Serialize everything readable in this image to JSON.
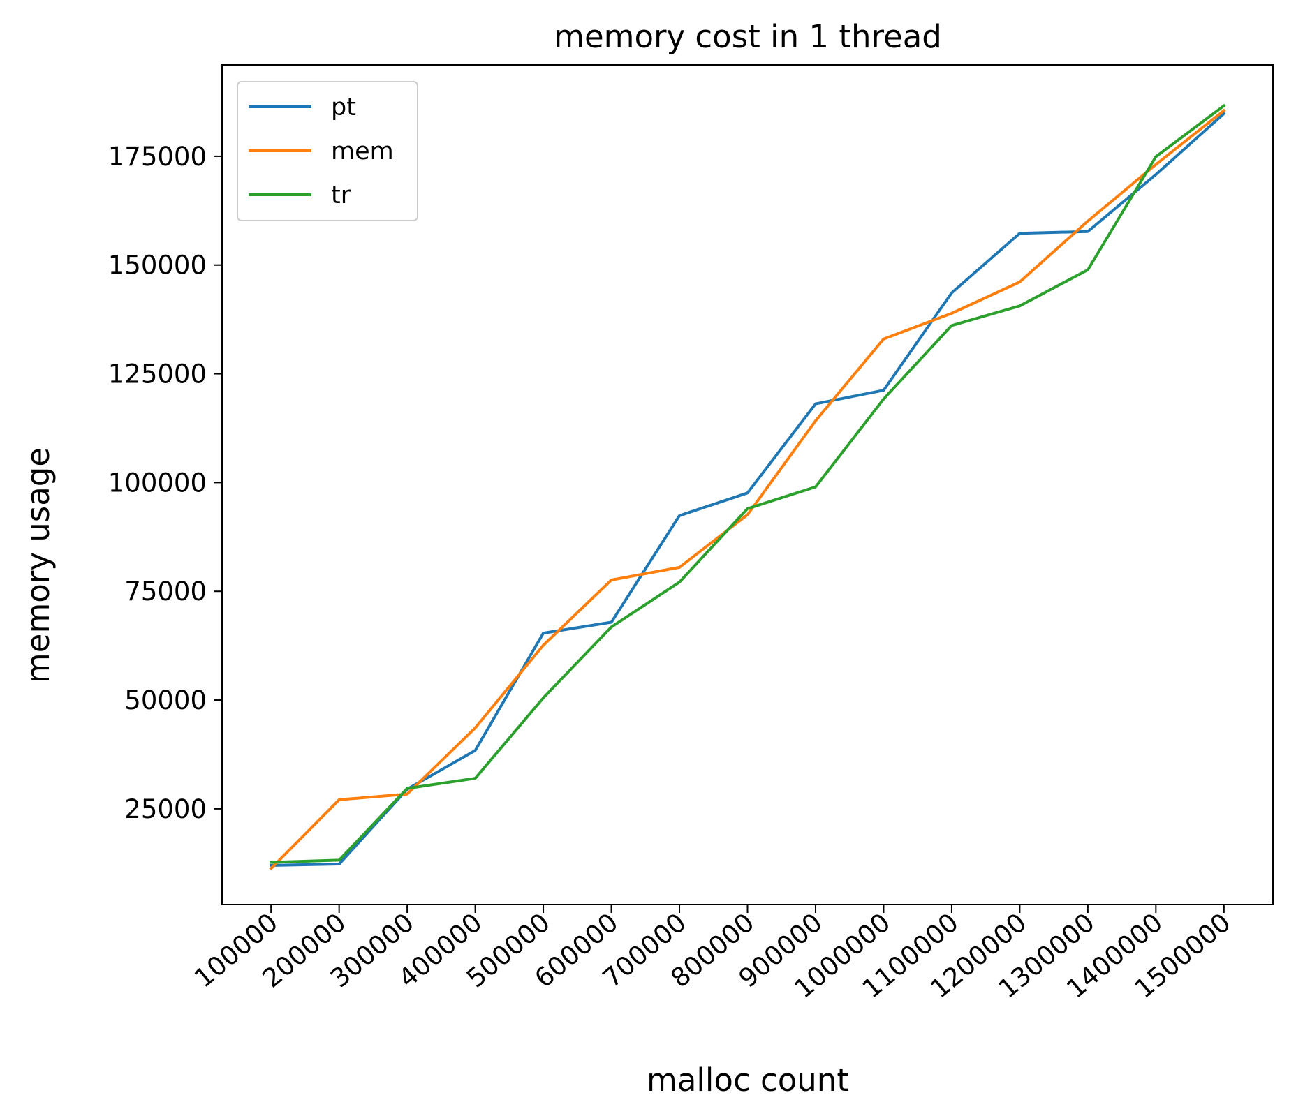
{
  "chart_data": {
    "type": "line",
    "title": "memory cost in 1 thread",
    "xlabel": "malloc count",
    "ylabel": "memory usage",
    "x": [
      100000,
      200000,
      300000,
      400000,
      500000,
      600000,
      700000,
      800000,
      900000,
      1000000,
      1100000,
      1200000,
      1300000,
      1400000,
      1500000
    ],
    "x_tick_labels": [
      "100000",
      "200000",
      "300000",
      "400000",
      "500000",
      "600000",
      "700000",
      "800000",
      "900000",
      "1000000",
      "1100000",
      "1200000",
      "1300000",
      "1400000",
      "1500000"
    ],
    "y_ticks": [
      25000,
      50000,
      75000,
      100000,
      125000,
      150000,
      175000
    ],
    "y_tick_labels": [
      "25000",
      "50000",
      "75000",
      "100000",
      "125000",
      "150000",
      "175000"
    ],
    "xlim": [
      28000,
      1572000
    ],
    "ylim": [
      3000,
      196000
    ],
    "grid": false,
    "legend_position": "top-left",
    "series": [
      {
        "name": "pt",
        "color": "#1f77b4",
        "values": [
          12000,
          12300,
          29500,
          38400,
          65400,
          67900,
          92400,
          97600,
          118100,
          121200,
          143600,
          157300,
          157700,
          170800,
          184800
        ]
      },
      {
        "name": "mem",
        "color": "#ff7f0e",
        "values": [
          11300,
          27100,
          28400,
          43600,
          62600,
          77600,
          80500,
          92600,
          114200,
          133000,
          138900,
          146100,
          160100,
          173100,
          185500
        ]
      },
      {
        "name": "tr",
        "color": "#2ca02c",
        "values": [
          12700,
          13200,
          29700,
          32000,
          50500,
          66800,
          77100,
          94000,
          99000,
          119200,
          136100,
          140600,
          148900,
          174900,
          186600
        ]
      }
    ]
  }
}
